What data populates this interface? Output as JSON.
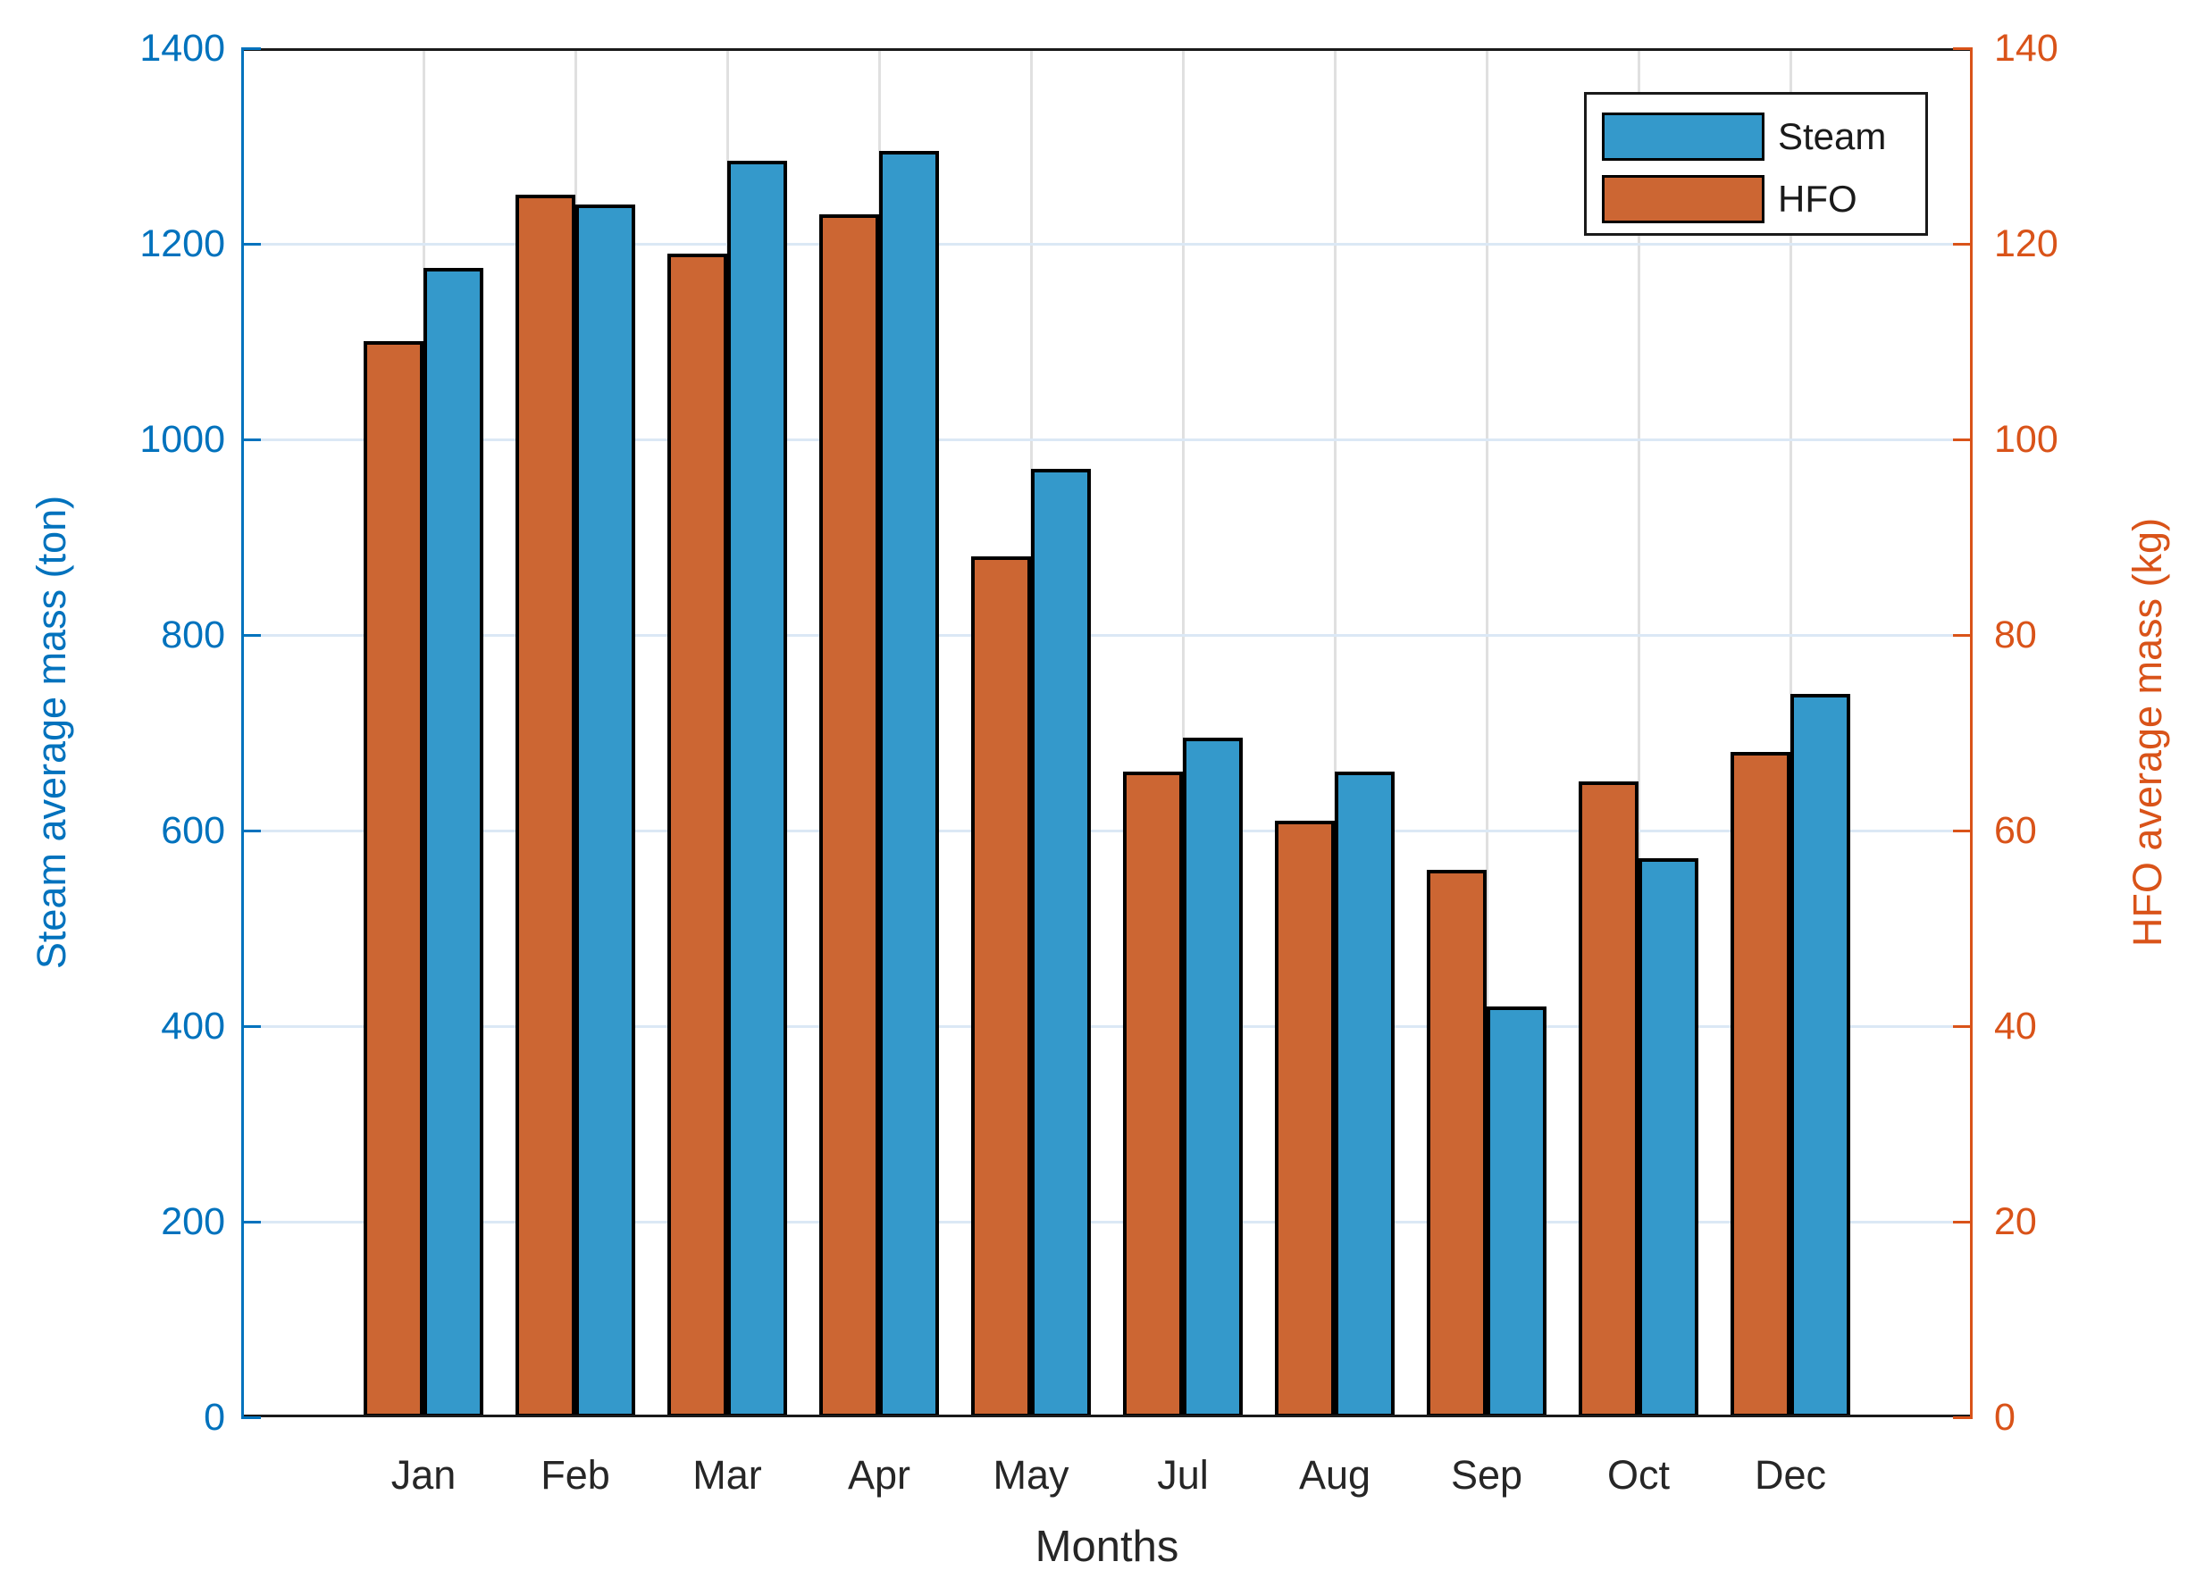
{
  "chart_data": {
    "type": "bar",
    "title": "",
    "xlabel": "Months",
    "categories": [
      "Jan",
      "Feb",
      "Mar",
      "Apr",
      "May",
      "Jul",
      "Aug",
      "Sep",
      "Oct",
      "Dec"
    ],
    "series": [
      {
        "name": "Steam",
        "yaxis": "left",
        "color": "#3499CB",
        "values": [
          1175,
          1240,
          1285,
          1295,
          970,
          695,
          660,
          420,
          572,
          740
        ]
      },
      {
        "name": "HFO",
        "yaxis": "right",
        "color": "#CC6633",
        "values": [
          110,
          125,
          119,
          123,
          88,
          66,
          61,
          56,
          65,
          68
        ]
      }
    ],
    "axes": {
      "left": {
        "label": "Steam average mass (ton)",
        "min": 0,
        "max": 1400,
        "ticks": [
          0,
          200,
          400,
          600,
          800,
          1000,
          1200,
          1400
        ],
        "color": "#0072BD"
      },
      "right": {
        "label": "HFO average mass (kg)",
        "min": 0,
        "max": 140,
        "ticks": [
          0,
          20,
          40,
          60,
          80,
          100,
          120,
          140
        ],
        "color": "#D95319"
      }
    },
    "grid": {
      "horizontal": true,
      "vertical": true
    },
    "bar_edge_color": "#000000",
    "legend": {
      "position": "top-right",
      "entries": [
        {
          "label": "Steam",
          "color": "#3499CB"
        },
        {
          "label": "HFO",
          "color": "#CC6633"
        }
      ]
    }
  }
}
